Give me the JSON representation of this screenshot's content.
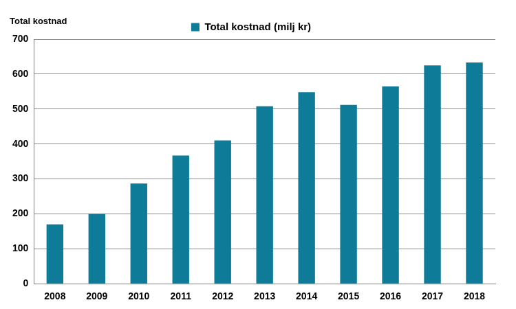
{
  "chart_data": {
    "type": "bar",
    "y_label": "Total kostnad",
    "categories": [
      "2008",
      "2009",
      "2010",
      "2011",
      "2012",
      "2013",
      "2014",
      "2015",
      "2016",
      "2017",
      "2018"
    ],
    "series": [
      {
        "name": "Total kostnad (milj kr)",
        "color": "#0e7b98",
        "values": [
          170,
          200,
          287,
          367,
          410,
          508,
          548,
          512,
          565,
          625,
          633
        ]
      }
    ],
    "ylim": [
      0,
      700
    ],
    "yticks": [
      0,
      100,
      200,
      300,
      400,
      500,
      600,
      700
    ],
    "grid": true,
    "legend": "top"
  }
}
